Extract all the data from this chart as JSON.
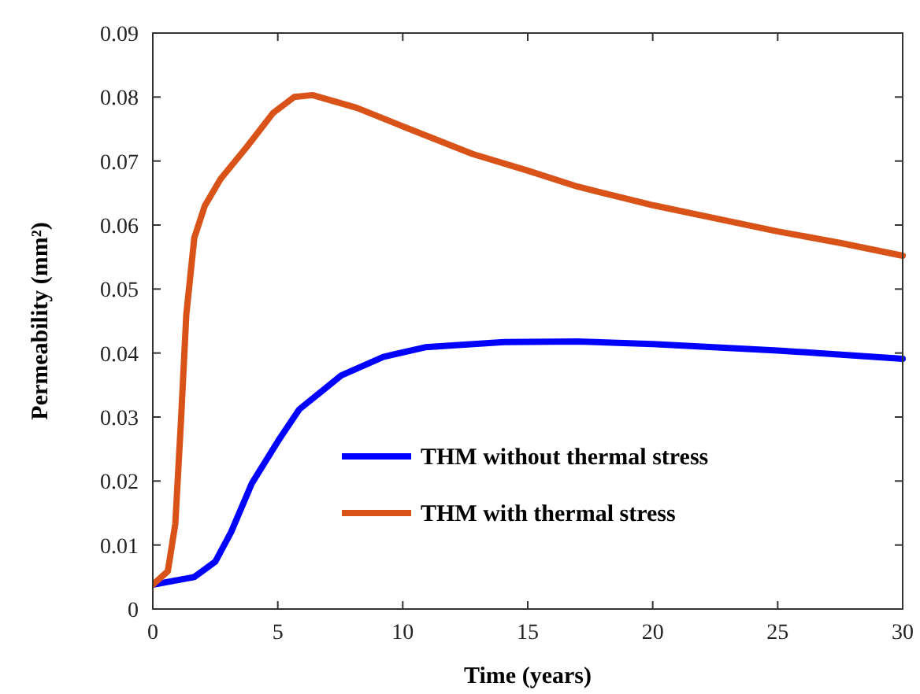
{
  "chart_data": {
    "type": "line",
    "xlabel": "Time (years)",
    "ylabel": "Permeability (mm²)",
    "xlim": [
      0,
      30
    ],
    "xticks": [
      0,
      5,
      10,
      15,
      20,
      25,
      30
    ],
    "ylim": [
      0,
      0.09
    ],
    "yticks": [
      0,
      0.01,
      0.02,
      0.03,
      0.04,
      0.05,
      0.06,
      0.07,
      0.08,
      0.09
    ],
    "grid": false,
    "legend": "right",
    "line_style": "solid",
    "marker": "none",
    "series": [
      {
        "name": "THM without thermal stress",
        "color": "#0000ff",
        "x": [
          0,
          1.66,
          2.5,
          3.13,
          3.97,
          5.02,
          5.86,
          7.54,
          9.22,
          10.9,
          14.05,
          17,
          20,
          25,
          30
        ],
        "values": [
          0.0038,
          0.005,
          0.0074,
          0.012,
          0.0197,
          0.0263,
          0.0312,
          0.0365,
          0.0394,
          0.0409,
          0.0417,
          0.0418,
          0.0414,
          0.0404,
          0.0391
        ]
      },
      {
        "name": "THM with thermal stress",
        "color": "#d95319",
        "x": [
          0,
          0.6,
          0.9,
          1.13,
          1.34,
          1.66,
          2.08,
          2.71,
          3.76,
          4.81,
          5.65,
          6.39,
          8.17,
          10.27,
          12.8,
          15,
          17,
          20,
          22.45,
          25,
          27.5,
          30
        ],
        "values": [
          0.0038,
          0.0059,
          0.0133,
          0.0296,
          0.046,
          0.058,
          0.063,
          0.0672,
          0.0722,
          0.0775,
          0.08,
          0.0803,
          0.0783,
          0.075,
          0.0711,
          0.0685,
          0.066,
          0.0631,
          0.0611,
          0.059,
          0.0572,
          0.0552
        ]
      }
    ]
  }
}
